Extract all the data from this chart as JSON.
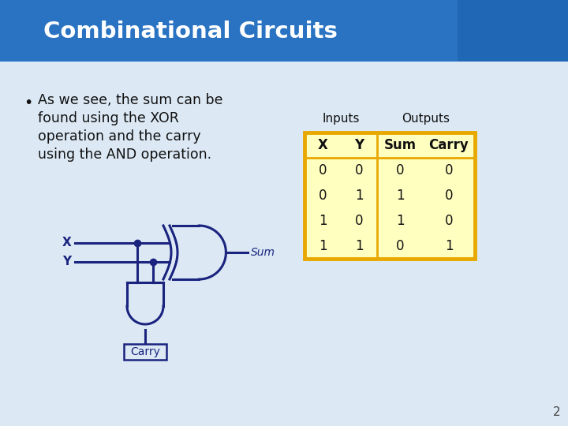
{
  "title": "Combinational Circuits",
  "title_color": "#FFFFFF",
  "title_bg_color": "#2973C2",
  "slide_bg_color": "#DCE9F5",
  "bullet_text_lines": [
    "As we see, the sum can be",
    "found using the XOR",
    "operation and the carry",
    "using the AND operation."
  ],
  "table_group_label_inputs": "Inputs",
  "table_group_label_outputs": "Outputs",
  "table_col_headers": [
    "X",
    "Y",
    "Sum",
    "Carry"
  ],
  "table_data": [
    [
      0,
      0,
      0,
      0
    ],
    [
      0,
      1,
      1,
      0
    ],
    [
      1,
      0,
      1,
      0
    ],
    [
      1,
      1,
      0,
      1
    ]
  ],
  "table_border_color": "#E8A800",
  "table_divider_color": "#C89000",
  "table_bg_color": "#FFFFC0",
  "circuit_color": "#1A237E",
  "label_x": "X",
  "label_y": "Y",
  "label_sum": "Sum",
  "label_carry": "Carry",
  "page_number": "2"
}
